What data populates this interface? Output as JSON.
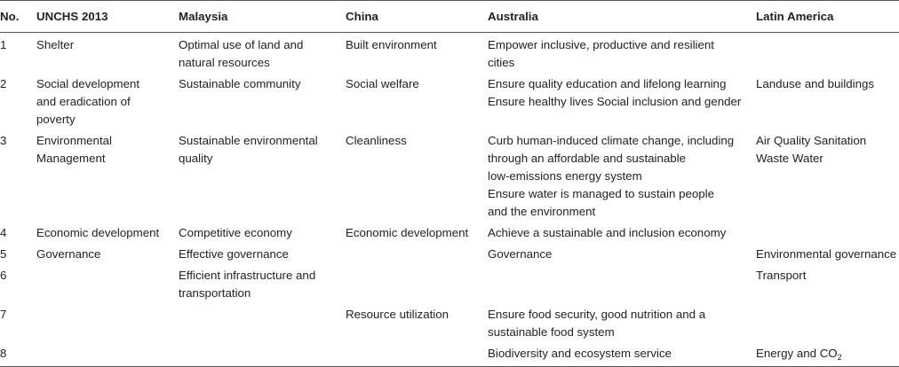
{
  "table": {
    "headers": [
      "No.",
      "UNCHS 2013",
      "Malaysia",
      "China",
      "Australia",
      "Latin America"
    ],
    "rows": [
      {
        "no": "1",
        "unchs": [
          "Shelter"
        ],
        "malaysia": [
          "Optimal use of land and",
          "natural resources"
        ],
        "china": [
          "Built environment"
        ],
        "australia": [
          "Empower inclusive, productive and resilient",
          "cities"
        ],
        "latin": []
      },
      {
        "no": "2",
        "unchs": [
          "Social development",
          "and eradication of",
          "poverty"
        ],
        "malaysia": [
          "Sustainable community"
        ],
        "china": [
          "Social welfare"
        ],
        "australia": [
          "Ensure quality education and lifelong learning",
          "Ensure healthy lives Social inclusion and gender"
        ],
        "latin": [
          "Landuse and buildings"
        ]
      },
      {
        "no": "3",
        "unchs": [
          "Environmental",
          "Management"
        ],
        "malaysia": [
          "Sustainable environmental",
          "quality"
        ],
        "china": [
          "Cleanliness"
        ],
        "australia": [
          "Curb human-induced climate change, including",
          "through an affordable and sustainable",
          "low-emissions energy system",
          "Ensure water is managed to sustain people",
          "and the environment"
        ],
        "latin": [
          "Air Quality Sanitation",
          "Waste Water"
        ]
      },
      {
        "no": "4",
        "unchs": [
          "Economic development"
        ],
        "malaysia": [
          "Competitive economy"
        ],
        "china": [
          "Economic development"
        ],
        "australia": [
          "Achieve a sustainable and inclusion economy"
        ],
        "latin": []
      },
      {
        "no": "5",
        "unchs": [
          "Governance"
        ],
        "malaysia": [
          "Effective governance"
        ],
        "china": [],
        "australia": [
          "Governance"
        ],
        "latin": [
          "Environmental governance"
        ]
      },
      {
        "no": "6",
        "unchs": [],
        "malaysia": [
          "Efficient infrastructure and",
          "transportation"
        ],
        "china": [],
        "australia": [],
        "latin": [
          "Transport"
        ]
      },
      {
        "no": "7",
        "unchs": [],
        "malaysia": [],
        "china": [
          "Resource utilization"
        ],
        "australia": [
          "Ensure food security, good nutrition and a",
          "sustainable food system"
        ],
        "latin": []
      },
      {
        "no": "8",
        "unchs": [],
        "malaysia": [],
        "china": [],
        "australia": [
          "Biodiversity and ecosystem service"
        ],
        "latin": [
          "Energy and CO",
          "2"
        ]
      }
    ]
  }
}
